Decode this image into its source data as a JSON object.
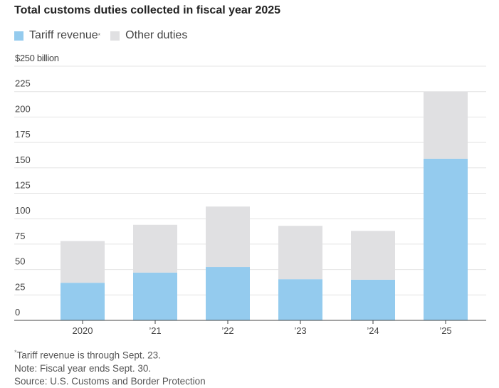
{
  "chart_data": {
    "type": "bar",
    "stacked": true,
    "title": "Total customs duties collected in fiscal year 2025",
    "categories": [
      "2020",
      "’21",
      "’22",
      "’23",
      "’24",
      "’25"
    ],
    "series": [
      {
        "name": "Tariff revenue",
        "marker": "*",
        "color": "#94cbee",
        "values": [
          37,
          47,
          52.5,
          40.5,
          40,
          159
        ]
      },
      {
        "name": "Other duties",
        "color": "#e0e0e2",
        "values": [
          41,
          47,
          59.5,
          52.5,
          48,
          66
        ]
      }
    ],
    "ylim": [
      0,
      250
    ],
    "yticks": [
      0,
      25,
      50,
      75,
      100,
      125,
      150,
      175,
      200,
      225,
      250
    ],
    "ytick_labels": [
      "0",
      "25",
      "50",
      "75",
      "100",
      "125",
      "150",
      "175",
      "200",
      "225",
      "$250 billion"
    ],
    "grid": true,
    "legend": "top-left"
  },
  "notes": {
    "footnote": "Tariff revenue is through Sept. 23.",
    "footnote_marker": "*",
    "note": "Note: Fiscal year ends Sept. 30.",
    "source": "Source: U.S. Customs and Border Protection"
  }
}
